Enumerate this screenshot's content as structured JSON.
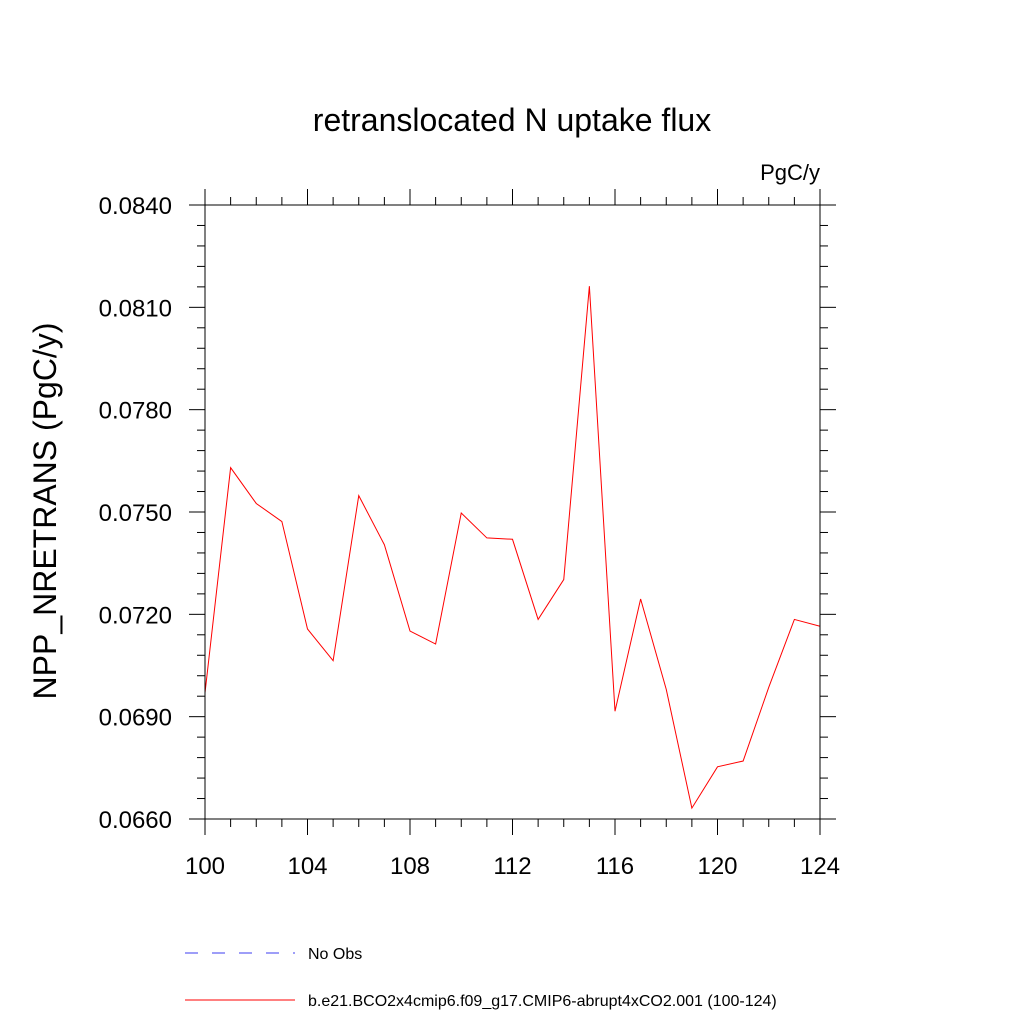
{
  "chart_data": {
    "type": "line",
    "title": "retranslocated N uptake flux",
    "units_label": "PgC/y",
    "xlabel": "",
    "ylabel": "NPP_NRETRANS  (PgC/y)",
    "xlim": [
      100,
      124
    ],
    "ylim": [
      0.066,
      0.084
    ],
    "x_ticks": [
      100,
      104,
      108,
      112,
      116,
      120,
      124
    ],
    "x_tick_labels": [
      "100",
      "104",
      "108",
      "112",
      "116",
      "120",
      "124"
    ],
    "y_ticks": [
      0.066,
      0.069,
      0.072,
      0.075,
      0.078,
      0.081,
      0.084
    ],
    "y_tick_labels": [
      "0.0660",
      "0.0690",
      "0.0720",
      "0.0750",
      "0.0780",
      "0.0810",
      "0.0840"
    ],
    "grid": false,
    "legend_position": "bottom",
    "series": [
      {
        "name": "No Obs",
        "color": "#3d3df0",
        "dash": "dashed",
        "x": [],
        "values": []
      },
      {
        "name": "b.e21.BCO2x4cmip6.f09_g17.CMIP6-abrupt4xCO2.001 (100-124)",
        "color": "#ff0000",
        "dash": "solid",
        "x": [
          100,
          101,
          102,
          103,
          104,
          105,
          106,
          107,
          108,
          109,
          110,
          111,
          112,
          113,
          114,
          115,
          116,
          117,
          118,
          119,
          120,
          121,
          122,
          123,
          124
        ],
        "values": [
          0.0697,
          0.0763,
          0.07525,
          0.07472,
          0.07157,
          0.07064,
          0.07548,
          0.07404,
          0.07151,
          0.07113,
          0.07497,
          0.07424,
          0.0742,
          0.07185,
          0.07302,
          0.08162,
          0.06916,
          0.07245,
          0.0698,
          0.06632,
          0.06753,
          0.0677,
          0.06986,
          0.07185,
          0.07165
        ]
      }
    ]
  }
}
